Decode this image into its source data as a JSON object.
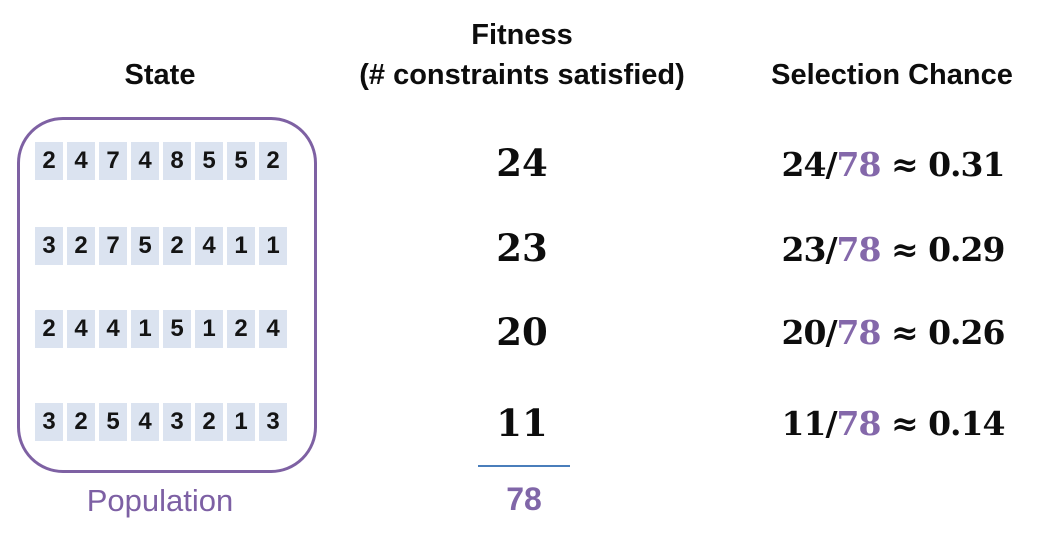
{
  "headers": {
    "state": "State",
    "fitness_line1": "Fitness",
    "fitness_line2": "(# constraints satisfied)",
    "selection": "Selection Chance"
  },
  "population": {
    "label": "Population",
    "rows": [
      {
        "digits": [
          "2",
          "4",
          "7",
          "4",
          "8",
          "5",
          "5",
          "2"
        ]
      },
      {
        "digits": [
          "3",
          "2",
          "7",
          "5",
          "2",
          "4",
          "1",
          "1"
        ]
      },
      {
        "digits": [
          "2",
          "4",
          "4",
          "1",
          "5",
          "1",
          "2",
          "4"
        ]
      },
      {
        "digits": [
          "3",
          "2",
          "5",
          "4",
          "3",
          "2",
          "1",
          "3"
        ]
      }
    ]
  },
  "fitness": {
    "values": [
      "24",
      "23",
      "20",
      "11"
    ],
    "total": "78"
  },
  "selection": {
    "rows": [
      {
        "numerator": "24/",
        "total": "78",
        "approx": " ≈ 0.31"
      },
      {
        "numerator": "23/",
        "total": "78",
        "approx": " ≈ 0.29"
      },
      {
        "numerator": "20/",
        "total": "78",
        "approx": " ≈ 0.26"
      },
      {
        "numerator": "11/",
        "total": "78",
        "approx": " ≈ 0.14"
      }
    ]
  },
  "colors": {
    "outline_purple": "#7e61a3",
    "label_purple": "#7d60a4",
    "math_purple": "#8468aa",
    "cell_fill": "#dbe3f0",
    "sum_line_blue": "#4a7ebb",
    "text_black": "#0d0d0d"
  }
}
